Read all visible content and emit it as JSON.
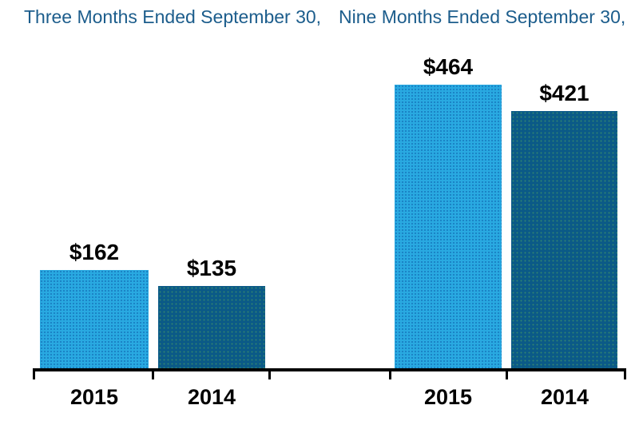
{
  "headers": {
    "left": "Three Months Ended September 30,",
    "right": "Nine Months Ended September 30,"
  },
  "colors": {
    "series_2015": "#29A9E1",
    "series_2014": "#0B5A87",
    "title_text": "#1C5D8C",
    "label_text": "#000000",
    "axis": "#000000"
  },
  "chart_data": {
    "type": "bar",
    "title": "",
    "xlabel": "",
    "ylabel": "",
    "ylim": [
      0,
      464
    ],
    "grid": false,
    "legend": "none",
    "groups": [
      {
        "title": "Three Months Ended September 30,",
        "categories": [
          "2015",
          "2014"
        ],
        "values": [
          162,
          135
        ]
      },
      {
        "title": "Nine Months Ended September 30,",
        "categories": [
          "2015",
          "2014"
        ],
        "values": [
          464,
          421
        ]
      }
    ],
    "bars": [
      {
        "label": "2015",
        "value": 162,
        "display": "$162",
        "series": "2015"
      },
      {
        "label": "2014",
        "value": 135,
        "display": "$135",
        "series": "2014"
      },
      {
        "label": "2015",
        "value": 464,
        "display": "$464",
        "series": "2015"
      },
      {
        "label": "2014",
        "value": 421,
        "display": "$421",
        "series": "2014"
      }
    ]
  }
}
